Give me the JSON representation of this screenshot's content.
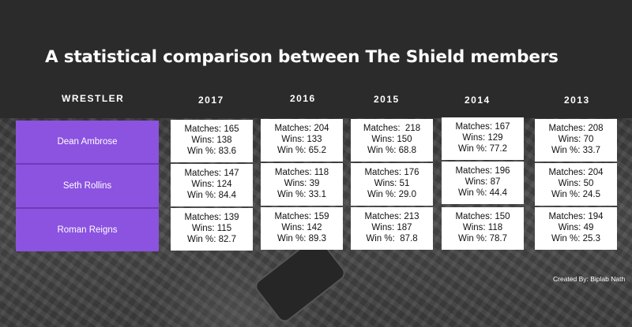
{
  "title": "A statistical comparison between The Shield members",
  "header": {
    "wrestler": "WRESTLER",
    "years": [
      "2017",
      "2016",
      "2015",
      "2014",
      "2013"
    ]
  },
  "wrestlers": [
    "Dean Ambrose",
    "Seth Rollins",
    "Roman Reigns"
  ],
  "stats": [
    [
      {
        "m": "Matches: 165",
        "w": "Wins: 138",
        "p": "Win %: 83.6"
      },
      {
        "m": "Matches: 147",
        "w": "Wins: 124",
        "p": "Win %: 84.4"
      },
      {
        "m": "Matches: 139",
        "w": "Wins: 115",
        "p": "Win %: 82.7"
      }
    ],
    [
      {
        "m": "Matches: 204",
        "w": "Wins: 133",
        "p": "Win %: 65.2"
      },
      {
        "m": "Matches: 118",
        "w": "Wins: 39",
        "p": "Win %: 33.1"
      },
      {
        "m": "Matches: 159",
        "w": "Wins: 142",
        "p": "Win %: 89.3"
      }
    ],
    [
      {
        "m": "Matches:  218",
        "w": "Wins: 150",
        "p": "Win %: 68.8"
      },
      {
        "m": "Matches: 176",
        "w": "Wins: 51",
        "p": "Win %: 29.0"
      },
      {
        "m": "Matches: 213",
        "w": "Wins: 187",
        "p": "Win %:  87.8"
      }
    ],
    [
      {
        "m": "Matches: 167",
        "w": "Wins: 129",
        "p": "Win %: 77.2"
      },
      {
        "m": "Matches: 196",
        "w": "Wins: 87",
        "p": "Win %: 44.4"
      },
      {
        "m": "Matches: 150",
        "w": "Wins: 118",
        "p": "Win %: 78.7"
      }
    ],
    [
      {
        "m": "Matches: 208",
        "w": "Wins: 70",
        "p": "Win %: 33.7"
      },
      {
        "m": "Matches: 204",
        "w": "Wins: 50",
        "p": "Win %: 24.5"
      },
      {
        "m": "Matches: 194",
        "w": "Wins: 49",
        "p": "Win %: 25.3"
      }
    ]
  ],
  "credit": "Created By: Biplab Nath",
  "colors": {
    "accent": "#8c52e0",
    "background": "#2b2b2c",
    "card": "#ffffff"
  }
}
